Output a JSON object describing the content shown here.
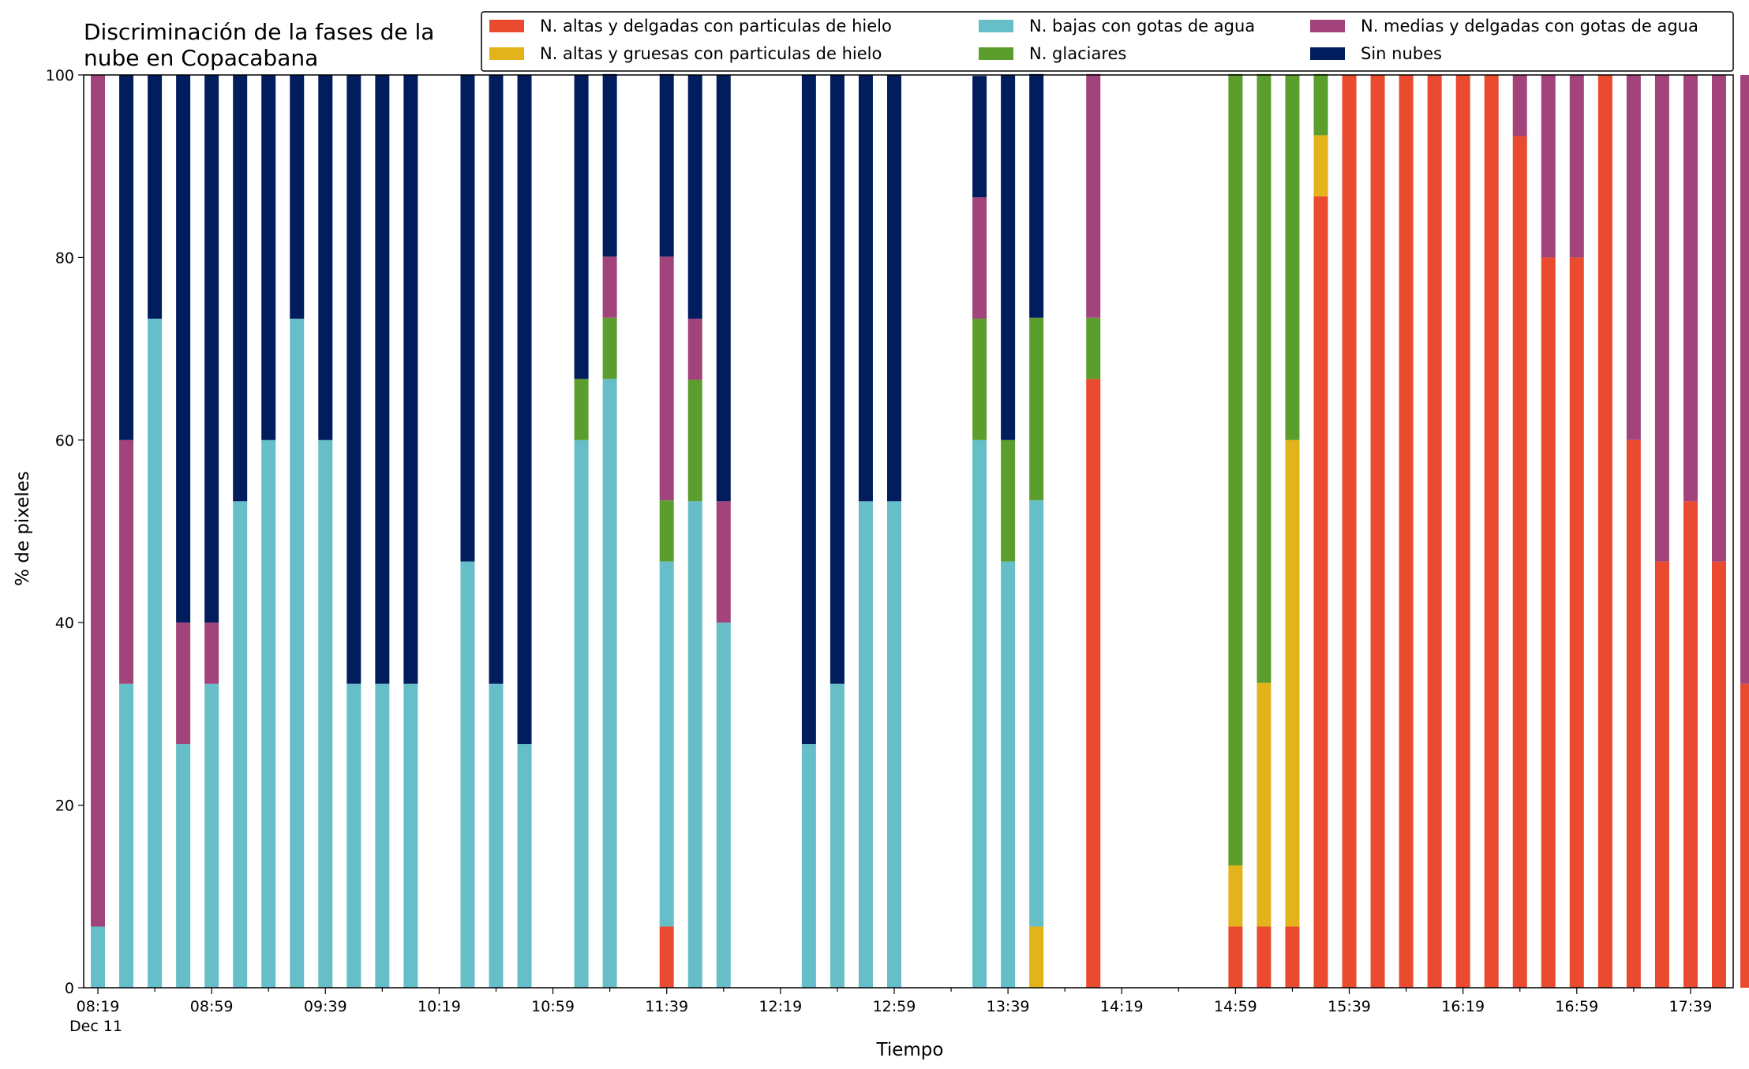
{
  "chart_data": {
    "type": "bar",
    "stacked": true,
    "title_lines": [
      "Discriminación de la fases de la",
      "nube en Copacabana"
    ],
    "xlabel": "Tiempo",
    "ylabel": "% de pixeles",
    "ylim": [
      0,
      100
    ],
    "yticks": [
      0,
      20,
      40,
      60,
      80,
      100
    ],
    "x_tick_labels": [
      "08:19",
      "08:59",
      "09:39",
      "10:19",
      "10:59",
      "11:39",
      "12:19",
      "12:59",
      "13:39",
      "14:19",
      "14:59",
      "15:39",
      "16:19",
      "16:59",
      "17:39"
    ],
    "x_date_label": "Dec 11",
    "x_start_time": "08:19",
    "x_interval_minutes": 10,
    "n_slots": 58,
    "grid": false,
    "legend_position": "top-right",
    "series": [
      {
        "name": "N. altas y delgadas con particulas de hielo",
        "color": "#ea4a2e"
      },
      {
        "name": "N. altas y gruesas con particulas de hielo",
        "color": "#e2b31a"
      },
      {
        "name": "N. bajas con gotas de agua",
        "color": "#66bec9"
      },
      {
        "name": "N. glaciares",
        "color": "#5c9e2d"
      },
      {
        "name": "N. medias y delgadas con gotas de agua",
        "color": "#a3437c"
      },
      {
        "name": "Sin nubes",
        "color": "#021d5d"
      }
    ],
    "stack_order": [
      "N. altas y delgadas con particulas de hielo",
      "N. altas y gruesas con particulas de hielo",
      "N. bajas con gotas de agua",
      "N. glaciares",
      "N. medias y delgadas con gotas de agua",
      "Sin nubes"
    ],
    "bars": [
      {
        "time": "08:19",
        "values": [
          0,
          0,
          6.7,
          0,
          93.3,
          0
        ]
      },
      {
        "time": "08:29",
        "values": [
          0,
          0,
          33.3,
          0,
          26.7,
          40
        ]
      },
      {
        "time": "08:39",
        "values": [
          0,
          0,
          73.3,
          0,
          0,
          26.7
        ]
      },
      {
        "time": "08:49",
        "values": [
          0,
          0,
          26.7,
          0,
          13.3,
          60
        ]
      },
      {
        "time": "08:59",
        "values": [
          0,
          0,
          33.3,
          0,
          6.7,
          60
        ]
      },
      {
        "time": "09:09",
        "values": [
          0,
          0,
          53.3,
          0,
          0,
          46.7
        ]
      },
      {
        "time": "09:19",
        "values": [
          0,
          0,
          60,
          0,
          0,
          40
        ]
      },
      {
        "time": "09:29",
        "values": [
          0,
          0,
          73.3,
          0,
          0,
          26.7
        ]
      },
      {
        "time": "09:39",
        "values": [
          0,
          0,
          60,
          0,
          0,
          40
        ]
      },
      {
        "time": "09:49",
        "values": [
          0,
          0,
          33.3,
          0,
          0,
          66.7
        ]
      },
      {
        "time": "09:59",
        "values": [
          0,
          0,
          33.3,
          0,
          0,
          66.7
        ]
      },
      {
        "time": "10:09",
        "values": [
          0,
          0,
          33.3,
          0,
          0,
          66.7
        ]
      },
      {
        "time": "10:29",
        "values": [
          0,
          0,
          46.7,
          0,
          0,
          53.3
        ]
      },
      {
        "time": "10:39",
        "values": [
          0,
          0,
          33.3,
          0,
          0,
          66.7
        ]
      },
      {
        "time": "10:49",
        "values": [
          0,
          0,
          26.7,
          0,
          0,
          73.3
        ]
      },
      {
        "time": "11:09",
        "values": [
          0,
          0,
          60,
          6.7,
          0,
          33.3
        ]
      },
      {
        "time": "11:19",
        "values": [
          0,
          0,
          66.7,
          6.7,
          6.7,
          20
        ]
      },
      {
        "time": "11:39",
        "values": [
          6.7,
          0,
          40,
          6.7,
          26.7,
          20
        ]
      },
      {
        "time": "11:49",
        "values": [
          0,
          0,
          53.3,
          13.3,
          6.7,
          26.7
        ]
      },
      {
        "time": "11:59",
        "values": [
          0,
          0,
          40,
          0,
          13.3,
          46.7
        ]
      },
      {
        "time": "12:29",
        "values": [
          0,
          0,
          26.7,
          0,
          0,
          73.3
        ]
      },
      {
        "time": "12:39",
        "values": [
          0,
          0,
          33.3,
          0,
          0,
          66.7
        ]
      },
      {
        "time": "12:49",
        "values": [
          0,
          0,
          53.3,
          0,
          0,
          46.7
        ]
      },
      {
        "time": "12:59",
        "values": [
          0,
          0,
          53.3,
          0,
          0,
          46.7
        ]
      },
      {
        "time": "13:29",
        "values": [
          0,
          0,
          60,
          13.3,
          13.3,
          13.3
        ]
      },
      {
        "time": "13:39",
        "values": [
          0,
          0,
          46.7,
          13.3,
          0,
          40
        ]
      },
      {
        "time": "13:49",
        "values": [
          0,
          6.7,
          46.7,
          20,
          0,
          26.7
        ]
      },
      {
        "time": "14:09",
        "values": [
          66.7,
          0,
          0,
          6.7,
          26.7,
          0
        ]
      },
      {
        "time": "14:59",
        "values": [
          6.7,
          6.7,
          0,
          86.7,
          0,
          0
        ]
      },
      {
        "time": "15:09",
        "values": [
          6.7,
          26.7,
          0,
          66.7,
          0,
          0
        ]
      },
      {
        "time": "15:19",
        "values": [
          6.7,
          53.3,
          0,
          40,
          0,
          0
        ]
      },
      {
        "time": "15:29",
        "values": [
          86.7,
          6.7,
          0,
          6.7,
          0,
          0
        ]
      },
      {
        "time": "15:39",
        "values": [
          100,
          0,
          0,
          0,
          0,
          0
        ]
      },
      {
        "time": "15:49",
        "values": [
          100,
          0,
          0,
          0,
          0,
          0
        ]
      },
      {
        "time": "15:59",
        "values": [
          100,
          0,
          0,
          0,
          0,
          0
        ]
      },
      {
        "time": "16:09",
        "values": [
          100,
          0,
          0,
          0,
          0,
          0
        ]
      },
      {
        "time": "16:19",
        "values": [
          100,
          0,
          0,
          0,
          0,
          0
        ]
      },
      {
        "time": "16:29",
        "values": [
          100,
          0,
          0,
          0,
          0,
          0
        ]
      },
      {
        "time": "16:39",
        "values": [
          93.3,
          0,
          0,
          0,
          6.7,
          0
        ]
      },
      {
        "time": "16:49",
        "values": [
          80,
          0,
          0,
          0,
          20,
          0
        ]
      },
      {
        "time": "16:59",
        "values": [
          80,
          0,
          0,
          0,
          20,
          0
        ]
      },
      {
        "time": "17:09",
        "values": [
          100,
          0,
          0,
          0,
          0,
          0
        ]
      },
      {
        "time": "17:19",
        "values": [
          60,
          0,
          0,
          0,
          40,
          0
        ]
      },
      {
        "time": "17:29",
        "values": [
          46.7,
          0,
          0,
          0,
          53.3,
          0
        ]
      },
      {
        "time": "17:39",
        "values": [
          53.3,
          0,
          0,
          0,
          46.7,
          0
        ]
      },
      {
        "time": "17:49",
        "values": [
          46.7,
          0,
          0,
          0,
          53.3,
          0
        ]
      },
      {
        "time": "17:59",
        "values": [
          33.3,
          0,
          0,
          0,
          66.7,
          0
        ]
      }
    ]
  }
}
